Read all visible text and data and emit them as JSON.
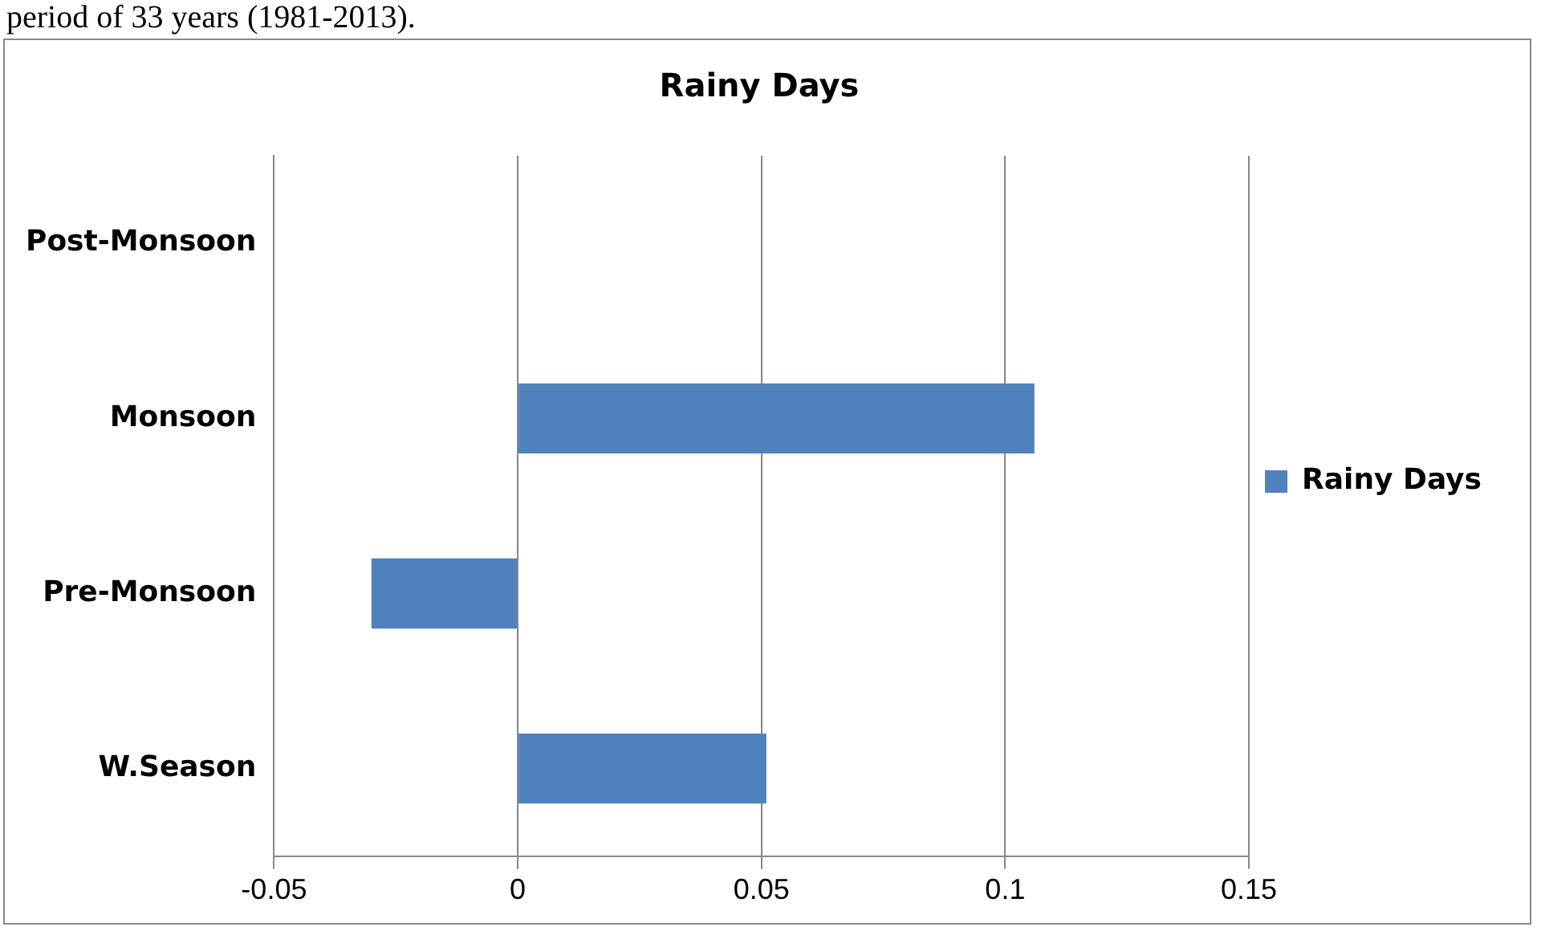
{
  "chart_data": {
    "type": "bar",
    "orientation": "horizontal",
    "title": "Rainy Days",
    "annotations": [
      "period of 33 years (1981-2013)."
    ],
    "categories": [
      "Post-Monsoon",
      "Monsoon",
      "Pre-Monsoon",
      "W.Season"
    ],
    "series": [
      {
        "name": "Rainy Days",
        "color": "#4f81bd",
        "values": [
          0,
          0.106,
          -0.03,
          0.051
        ]
      }
    ],
    "xlim": [
      -0.05,
      0.15
    ],
    "xticks": [
      -0.05,
      0,
      0.05,
      0.1,
      0.15
    ],
    "grid": "x",
    "legend": "right"
  }
}
